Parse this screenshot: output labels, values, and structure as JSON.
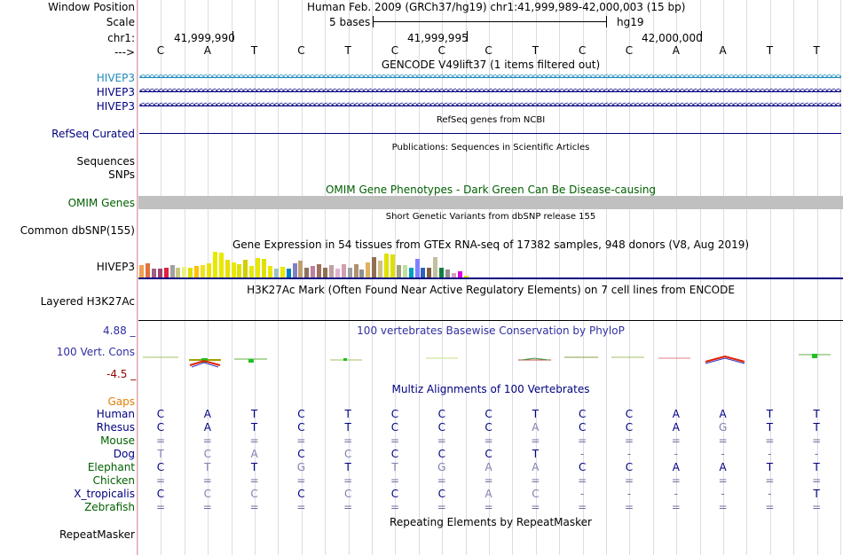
{
  "colors": {
    "navy": "#000080",
    "hivep3_blue": "#1f8bbd",
    "olive": "#006000",
    "gaps_orange": "#e08000",
    "cons_red": "#990000",
    "conservation_blue": "#3030a0",
    "faint": "#8080b0",
    "omim_gray": "#c0c0c0"
  },
  "header": {
    "window_position_label": "Window Position",
    "scale_label": "Scale",
    "chr_label": "chr1:",
    "strand_label": "--->",
    "assembly_text": "Human Feb. 2009 (GRCh37/hg19)   chr1:41,999,989-42,000,003 (15 bp)",
    "scale_text": "5 bases",
    "db_text": "hg19",
    "coords": [
      "41,999,990",
      "41,999,995",
      "42,000,000"
    ]
  },
  "reference_bases": [
    "C",
    "A",
    "T",
    "C",
    "T",
    "C",
    "C",
    "C",
    "T",
    "C",
    "C",
    "A",
    "A",
    "T",
    "T"
  ],
  "tracks": {
    "gencode": {
      "title": "GENCODE V49lift37 (1 items filtered out)",
      "labels": [
        "HIVEP3",
        "HIVEP3",
        "HIVEP3"
      ]
    },
    "refseq": {
      "title": "RefSeq genes from NCBI",
      "label": "RefSeq Curated"
    },
    "publications": {
      "title": "Publications: Sequences in Scientific Articles",
      "labels": [
        "Sequences",
        "SNPs"
      ]
    },
    "omim": {
      "title": "OMIM Gene Phenotypes - Dark Green Can Be Disease-causing",
      "label": "OMIM Genes"
    },
    "dbsnp": {
      "title": "Short Genetic Variants from dbSNP release 155",
      "label": "Common dbSNP(155)"
    },
    "gtex": {
      "title": "Gene Expression in 54 tissues from GTEx RNA-seq of 17382 samples, 948 donors (V8, Aug 2019)",
      "label": "HIVEP3"
    },
    "h3k27ac": {
      "title": "H3K27Ac Mark (Often Found Near Active Regulatory Elements) on 7 cell lines from ENCODE",
      "label": "Layered H3K27Ac"
    },
    "conservation": {
      "title": "100 vertebrates Basewise Conservation by PhyloP",
      "label": "100 Vert. Cons",
      "max": "4.88 _",
      "min": "-4.5 _"
    },
    "multiz": {
      "title": "Multiz Alignments of 100 Vertebrates",
      "gaps_label": "Gaps"
    },
    "repeatmasker": {
      "title": "Repeating Elements by RepeatMasker",
      "label": "RepeatMasker"
    }
  },
  "chart_data": {
    "type": "bar",
    "title": "Gene Expression in 54 tissues from GTEx RNA-seq of 17382 samples, 948 donors (V8, Aug 2019)",
    "xlabel": "",
    "ylabel": "",
    "values": [
      13,
      15,
      9,
      9,
      10,
      13,
      10,
      11,
      10,
      12,
      13,
      15,
      28,
      27,
      19,
      16,
      14,
      19,
      12,
      21,
      20,
      12,
      9,
      11,
      9,
      15,
      18,
      10,
      12,
      14,
      10,
      13,
      9,
      14,
      10,
      14,
      8,
      16,
      22,
      18,
      26,
      25,
      13,
      13,
      10,
      20,
      10,
      10,
      22,
      10,
      8,
      4,
      6,
      1
    ],
    "colors": [
      "#f0a050",
      "#e07040",
      "#a06080",
      "#a04070",
      "#e02040",
      "#a0a0a0",
      "#c8c880",
      "#f0f080",
      "#e0e000",
      "#ffc000",
      "#f0e020",
      "#f0e000",
      "#e8e800",
      "#e8e800",
      "#e8e000",
      "#e8e800",
      "#e0e000",
      "#d0d000",
      "#e8e800",
      "#e8e800",
      "#e0e000",
      "#e8e800",
      "#a0c0c0",
      "#e8e800",
      "#0080c0",
      "#8080c0",
      "#c0a070",
      "#907060",
      "#c080a0",
      "#a07060",
      "#907050",
      "#c0a0a0",
      "#e0b0d0",
      "#d0a0b0",
      "#a0a0a0",
      "#b09070",
      "#909090",
      "#e0b060",
      "#907050",
      "#d0c080",
      "#e0e000",
      "#e0e000",
      "#a0a080",
      "#c0e0a0",
      "#00a0c0",
      "#8080ff",
      "#3060c0",
      "#806040",
      "#c0c0a0",
      "#108040",
      "#909090",
      "#d0a0c0",
      "#e000e0",
      "#e0e000"
    ]
  },
  "alignments": [
    {
      "species": "Human",
      "color": "#000080",
      "bases": [
        "C",
        "A",
        "T",
        "C",
        "T",
        "C",
        "C",
        "C",
        "T",
        "C",
        "C",
        "A",
        "A",
        "T",
        "T"
      ]
    },
    {
      "species": "Rhesus",
      "color": "#000080",
      "bases": [
        "C",
        "A",
        "T",
        "C",
        "T",
        "C",
        "C",
        "C",
        "A",
        "C",
        "C",
        "A",
        "G",
        "T",
        "T"
      ]
    },
    {
      "species": "Mouse",
      "color": "#006000",
      "bases": [
        "=",
        "=",
        "=",
        "=",
        "=",
        "=",
        "=",
        "=",
        "=",
        "=",
        "=",
        "=",
        "=",
        "=",
        "="
      ]
    },
    {
      "species": "Dog",
      "color": "#000080",
      "bases": [
        "T",
        "C",
        "A",
        "C",
        "C",
        "C",
        "C",
        "C",
        "T",
        "-",
        "-",
        "-",
        "-",
        "-",
        "-"
      ]
    },
    {
      "species": "Elephant",
      "color": "#006000",
      "bases": [
        "C",
        "T",
        "T",
        "G",
        "T",
        "T",
        "G",
        "A",
        "A",
        "C",
        "C",
        "A",
        "A",
        "T",
        "T"
      ]
    },
    {
      "species": "Chicken",
      "color": "#006000",
      "bases": [
        "=",
        "=",
        "=",
        "=",
        "=",
        "=",
        "=",
        "=",
        "=",
        "=",
        "=",
        "=",
        "=",
        "=",
        "="
      ]
    },
    {
      "species": "X_tropicalis",
      "color": "#000080",
      "bases": [
        "C",
        "C",
        "C",
        "C",
        "C",
        "C",
        "C",
        "A",
        "C",
        "-",
        "-",
        "-",
        "-",
        "-",
        "T"
      ]
    },
    {
      "species": "Zebrafish",
      "color": "#006000",
      "bases": [
        "=",
        "=",
        "=",
        "=",
        "=",
        "=",
        "=",
        "=",
        "=",
        "=",
        "=",
        "=",
        "=",
        "=",
        "="
      ]
    }
  ]
}
